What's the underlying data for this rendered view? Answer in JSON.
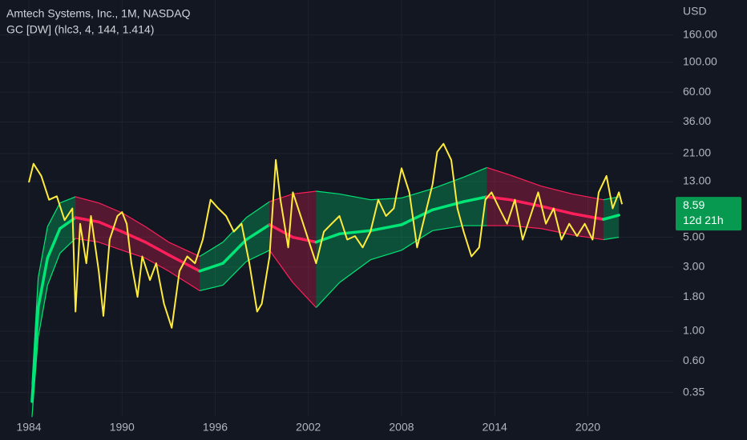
{
  "chart_data": {
    "type": "line",
    "title": "Amtech Systems, Inc., 1M, NASDAQ",
    "subtitle": "GC [DW] (hlc3, 4, 144, 1.414)",
    "y_axis_label": "USD",
    "log_scale": true,
    "grid": true,
    "xlim": [
      1982.14,
      2025.5
    ],
    "xticks": [
      1984,
      1990,
      1996,
      2002,
      2008,
      2014,
      2020
    ],
    "ylim": [
      0.234,
      291
    ],
    "yticks": [
      {
        "value": 160,
        "label": "160.00"
      },
      {
        "value": 100,
        "label": "100.00"
      },
      {
        "value": 60,
        "label": "60.00"
      },
      {
        "value": 36,
        "label": "36.00"
      },
      {
        "value": 21,
        "label": "21.00"
      },
      {
        "value": 13,
        "label": "13.00"
      },
      {
        "value": 5,
        "label": "5.00"
      },
      {
        "value": 3,
        "label": "3.00"
      },
      {
        "value": 1.8,
        "label": "1.80"
      },
      {
        "value": 1,
        "label": "1.00"
      },
      {
        "value": 0.6,
        "label": "0.60"
      },
      {
        "value": 0.35,
        "label": "0.35"
      }
    ],
    "last_price": 8.59,
    "countdown": "12d 21h",
    "last_price_color": "#089950",
    "price": {
      "color": "#ffeb3b",
      "x": [
        1984.0,
        1984.3,
        1984.8,
        1985.3,
        1985.8,
        1986.3,
        1986.8,
        1987.0,
        1987.3,
        1987.7,
        1988.0,
        1988.5,
        1988.8,
        1989.2,
        1989.7,
        1990.0,
        1990.3,
        1990.6,
        1991.0,
        1991.3,
        1991.8,
        1992.2,
        1992.7,
        1993.2,
        1993.7,
        1994.2,
        1994.7,
        1995.2,
        1995.7,
        1996.2,
        1996.7,
        1997.2,
        1997.7,
        1998.2,
        1998.7,
        1999.0,
        1999.5,
        1999.9,
        2000.2,
        2000.7,
        2001.0,
        2001.5,
        2002.0,
        2002.5,
        2003.0,
        2003.5,
        2004.0,
        2004.5,
        2005.0,
        2005.5,
        2006.0,
        2006.5,
        2007.0,
        2007.5,
        2008.0,
        2008.5,
        2009.0,
        2009.5,
        2010.0,
        2010.3,
        2010.7,
        2011.2,
        2011.6,
        2012.0,
        2012.5,
        2013.0,
        2013.4,
        2013.8,
        2014.3,
        2014.8,
        2015.3,
        2015.8,
        2016.3,
        2016.8,
        2017.3,
        2017.8,
        2018.3,
        2018.8,
        2019.3,
        2019.8,
        2020.3,
        2020.7,
        2021.2,
        2021.6,
        2022.0,
        2022.2
      ],
      "values": [
        12.8,
        17.6,
        14.3,
        9.5,
        10.1,
        6.7,
        8.2,
        1.4,
        6.3,
        3.2,
        7.2,
        2.8,
        1.3,
        4.8,
        7.2,
        7.7,
        6.3,
        3.2,
        1.8,
        3.6,
        2.4,
        3.2,
        1.6,
        1.06,
        2.8,
        3.6,
        3.2,
        4.8,
        9.5,
        8.2,
        7.2,
        5.5,
        6.3,
        3.2,
        1.4,
        1.6,
        3.6,
        18.8,
        9.5,
        4.2,
        10.8,
        7.2,
        4.8,
        3.2,
        5.5,
        6.3,
        7.2,
        4.8,
        5.1,
        4.2,
        5.5,
        9.5,
        7.2,
        8.2,
        16.3,
        10.8,
        4.2,
        7.2,
        12.4,
        21.6,
        24.8,
        18.8,
        8.2,
        5.5,
        3.6,
        4.2,
        9.5,
        10.8,
        8.2,
        6.3,
        9.5,
        4.8,
        7.2,
        10.8,
        6.3,
        8.2,
        4.8,
        6.3,
        5.1,
        6.3,
        4.8,
        10.8,
        14.3,
        8.2,
        10.8,
        8.8
      ]
    },
    "band": {
      "rise_color": "#00e676",
      "fall_color": "#ff1f5a",
      "x": [
        1984.2,
        1984.6,
        1985.2,
        1986.0,
        1987.0,
        1988.5,
        1990.0,
        1991.5,
        1993.0,
        1995.0,
        1996.5,
        1998.0,
        1999.5,
        2001.0,
        2002.5,
        2004.0,
        2006.0,
        2008.0,
        2010.0,
        2012.0,
        2013.5,
        2015.0,
        2017.0,
        2019.0,
        2021.0,
        2022.0
      ],
      "mid": [
        0.3,
        1.5,
        3.5,
        5.8,
        7.0,
        6.5,
        5.5,
        4.6,
        3.7,
        2.8,
        3.2,
        4.8,
        6.2,
        5.0,
        4.6,
        5.3,
        5.6,
        6.2,
        8.0,
        9.2,
        10.0,
        9.5,
        8.5,
        7.5,
        6.8,
        7.3
      ],
      "upper": [
        0.4,
        2.5,
        6.0,
        9.0,
        10.0,
        9.0,
        7.6,
        6.0,
        4.6,
        3.6,
        4.6,
        7.0,
        9.2,
        10.5,
        11.0,
        10.5,
        9.5,
        9.8,
        11.5,
        14.0,
        16.5,
        14.5,
        12.0,
        10.5,
        9.5,
        10.0
      ],
      "lower": [
        0.23,
        0.9,
        2.2,
        3.8,
        4.9,
        4.6,
        4.0,
        3.5,
        2.8,
        2.0,
        2.2,
        3.3,
        4.0,
        2.3,
        1.5,
        2.3,
        3.4,
        4.0,
        5.6,
        6.1,
        6.1,
        6.1,
        5.8,
        5.2,
        4.8,
        5.0
      ]
    }
  }
}
